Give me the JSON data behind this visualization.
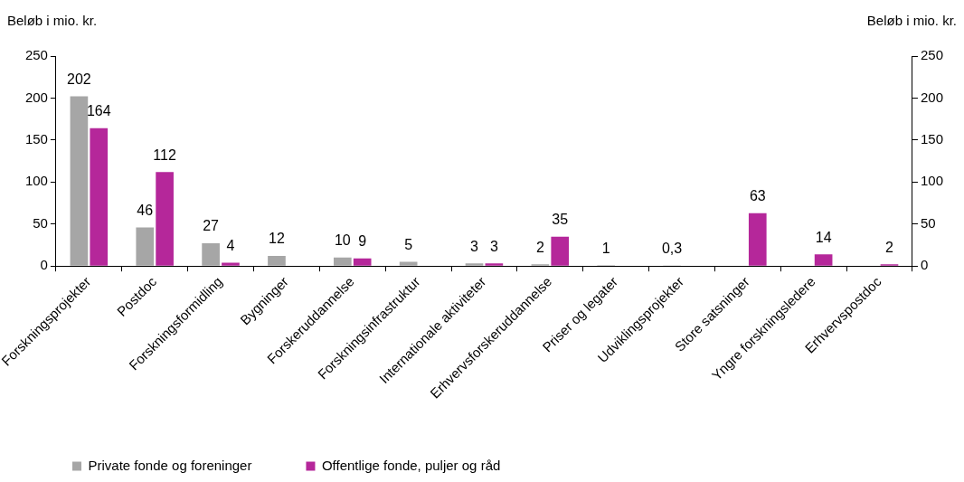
{
  "chart_data": {
    "type": "bar",
    "ylabel": "Beløb i mio. kr.",
    "y2label": "Beløb i mio. kr.",
    "categories": [
      "Forskningsprojekter",
      "Postdoc",
      "Forskningsformidling",
      "Bygninger",
      "Forskeruddannelse",
      "Forskningsinfrastruktur",
      "Internationale aktiviteter",
      "Erhvervsforskeruddannelse",
      "Priser og legater",
      "Udviklingsprojekter",
      "Store satsninger",
      "Yngre forskningsledere",
      "Erhvervspostdoc"
    ],
    "series": [
      {
        "name": "Private fonde og foreninger",
        "color": "#a6a6a6",
        "values": [
          202,
          46,
          27,
          12,
          10,
          5,
          3,
          2,
          1,
          0.3,
          null,
          null,
          null
        ],
        "value_labels": [
          "202",
          "46",
          "27",
          "12",
          "10",
          "5",
          "3",
          "2",
          "1",
          "0,3",
          null,
          null,
          null
        ]
      },
      {
        "name": "Offentlige fonde, puljer og råd",
        "color": "#b5279a",
        "values": [
          164,
          112,
          4,
          null,
          9,
          null,
          3,
          35,
          null,
          null,
          63,
          14,
          2
        ],
        "value_labels": [
          "164",
          "112",
          "4",
          null,
          "9",
          null,
          "3",
          "35",
          null,
          null,
          "63",
          "14",
          "2"
        ]
      }
    ],
    "ylim": [
      0,
      250
    ],
    "yticks": [
      0,
      50,
      100,
      150,
      200,
      250
    ],
    "y2lim": [
      0,
      250
    ],
    "y2ticks": [
      0,
      50,
      100,
      150,
      200,
      250
    ],
    "grid": false,
    "legend": "bottom left"
  }
}
